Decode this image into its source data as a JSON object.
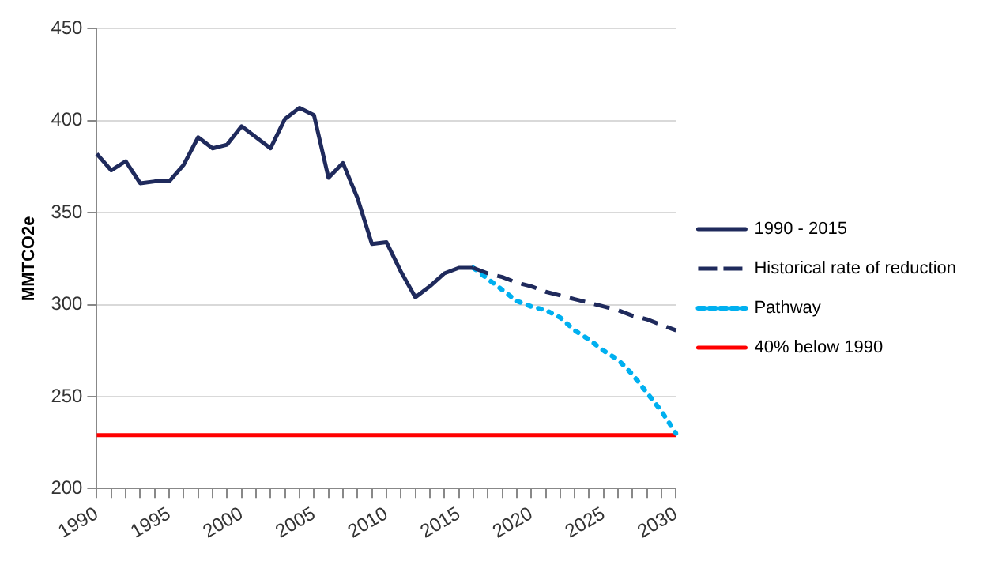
{
  "chart_data": {
    "type": "line",
    "ylabel": "MMTCO2e",
    "categories": [
      "1990",
      null,
      null,
      null,
      null,
      "1995",
      null,
      null,
      null,
      null,
      "2000",
      null,
      null,
      null,
      null,
      "2005",
      null,
      null,
      null,
      null,
      "2010",
      null,
      null,
      null,
      null,
      "2015",
      null,
      null,
      null,
      null,
      "2020",
      null,
      null,
      null,
      null,
      "2025",
      null,
      null,
      null,
      null,
      "2030"
    ],
    "ylim": [
      200,
      450
    ],
    "yticks": [
      200,
      250,
      300,
      350,
      400,
      450
    ],
    "grid": "y",
    "legend": "right",
    "marker": "none",
    "series": [
      {
        "name": "1990 - 2015",
        "color": "#1f2a5c",
        "line_style": "solid",
        "values": [
          382,
          373,
          378,
          366,
          367,
          367,
          376,
          391,
          385,
          387,
          397,
          391,
          385,
          401,
          407,
          403,
          369,
          377,
          358,
          333,
          334,
          318,
          304,
          310,
          317,
          320,
          320,
          null,
          null,
          null,
          null,
          null,
          null,
          null,
          null,
          null,
          null,
          null,
          null,
          null,
          null
        ]
      },
      {
        "name": "Historical rate of reduction",
        "color": "#1f2a5c",
        "line_style": "dashed",
        "values": [
          null,
          null,
          null,
          null,
          null,
          null,
          null,
          null,
          null,
          null,
          null,
          null,
          null,
          null,
          null,
          null,
          null,
          null,
          null,
          null,
          null,
          null,
          null,
          null,
          null,
          null,
          320,
          317,
          315,
          312,
          310,
          307,
          305,
          303,
          301,
          299,
          297,
          294,
          292,
          289,
          286
        ]
      },
      {
        "name": "Pathway",
        "color": "#00b0f0",
        "line_style": "dotted",
        "values": [
          null,
          null,
          null,
          null,
          null,
          null,
          null,
          null,
          null,
          null,
          null,
          null,
          null,
          null,
          null,
          null,
          null,
          null,
          null,
          null,
          null,
          null,
          null,
          null,
          null,
          null,
          320,
          314,
          308,
          302,
          299,
          297,
          293,
          286,
          281,
          275,
          270,
          262,
          252,
          242,
          230
        ]
      },
      {
        "name": "40% below 1990",
        "color": "#ff0000",
        "line_style": "solid",
        "values": [
          229,
          229,
          229,
          229,
          229,
          229,
          229,
          229,
          229,
          229,
          229,
          229,
          229,
          229,
          229,
          229,
          229,
          229,
          229,
          229,
          229,
          229,
          229,
          229,
          229,
          229,
          229,
          229,
          229,
          229,
          229,
          229,
          229,
          229,
          229,
          229,
          229,
          229,
          229,
          229,
          229
        ]
      }
    ]
  }
}
